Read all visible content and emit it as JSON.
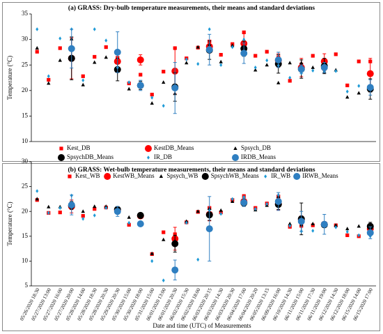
{
  "chart_data": [
    {
      "type": "scatter",
      "title": "(a) GRASS:  Dry-bulb temperature measurements, their means and standard deviations",
      "y_label": "Temperature (°C)",
      "ylim": [
        10,
        35
      ],
      "yticks": [
        10,
        15,
        20,
        25,
        30,
        35
      ],
      "grid": false,
      "legend": "bottom",
      "series": [
        {
          "name": "Kest_DB",
          "marker": "square",
          "color": "#ff0000",
          "values": [
            27.6,
            22.1,
            28.3,
            28.4,
            22.8,
            26.6,
            28.5,
            26.4,
            21.4,
            23.1,
            19.2,
            23.7,
            28.3,
            26.3,
            28.4,
            29.6,
            27,
            29.1,
            31.4,
            26.8,
            27.6,
            26.5,
            21.9,
            25.1,
            26.8,
            24.2,
            27.1,
            21,
            25.7,
            25.7
          ]
        },
        {
          "name": "KestDB_Means",
          "marker": "circle",
          "color": "#ff0000",
          "values": [
            null,
            null,
            null,
            26.3,
            null,
            null,
            null,
            25.7,
            null,
            26,
            null,
            null,
            23.8,
            null,
            null,
            28.6,
            null,
            null,
            29.2,
            null,
            null,
            25.9,
            null,
            24.5,
            null,
            25.7,
            null,
            null,
            null,
            23.3
          ],
          "errors": [
            null,
            null,
            null,
            4,
            null,
            null,
            null,
            1.5,
            null,
            1,
            null,
            null,
            4.5,
            null,
            null,
            1.2,
            null,
            null,
            2,
            null,
            null,
            1.3,
            null,
            1.8,
            null,
            1.5,
            null,
            null,
            null,
            3
          ]
        },
        {
          "name": "Spsych_DB",
          "marker": "triangle",
          "color": "#000000",
          "values": [
            28.3,
            21.4,
            25.9,
            30.1,
            21.1,
            25.5,
            26.5,
            23.8,
            20.3,
            21,
            17.5,
            21.6,
            19.4,
            25.4,
            28.5,
            29,
            25.6,
            28.8,
            28.5,
            24,
            25,
            21.5,
            25.4,
            25.4,
            24.5,
            23.7,
            24,
            18.7,
            19.5,
            19.9
          ]
        },
        {
          "name": "SpsychDB_Means",
          "marker": "circle",
          "color": "#000000",
          "values": [
            null,
            null,
            null,
            26.3,
            null,
            null,
            null,
            24.1,
            null,
            21,
            null,
            null,
            20.7,
            null,
            null,
            27.9,
            null,
            null,
            28.2,
            null,
            null,
            25.2,
            null,
            24.2,
            null,
            24.8,
            null,
            null,
            null,
            20.3
          ],
          "errors": [
            null,
            null,
            null,
            4.2,
            null,
            null,
            null,
            2.2,
            null,
            0.8,
            null,
            null,
            2.8,
            null,
            null,
            1.8,
            null,
            null,
            1.5,
            null,
            null,
            1.8,
            null,
            1.8,
            null,
            1.5,
            null,
            null,
            null,
            2
          ]
        },
        {
          "name": "IR_DB",
          "marker": "diamond",
          "color": "#1f9bd7",
          "values": [
            32,
            22.8,
            30.2,
            32,
            22,
            32,
            29.8,
            24.5,
            21.6,
            21.5,
            18.6,
            17,
            20.1,
            26.1,
            25.2,
            32,
            25,
            28.5,
            30,
            24.5,
            25.9,
            24.9,
            22.5,
            23.4,
            23.9,
            23.8,
            23.8,
            19.8,
            20.9,
            20.7
          ]
        },
        {
          "name": "IRDB_Means",
          "marker": "circle",
          "color": "#2f7fc1",
          "values": [
            null,
            null,
            null,
            28.2,
            null,
            null,
            null,
            27.5,
            null,
            21,
            null,
            null,
            20.5,
            null,
            null,
            28,
            null,
            null,
            27.3,
            null,
            null,
            26,
            null,
            24.2,
            null,
            24.5,
            null,
            null,
            null,
            20.6
          ],
          "errors": [
            null,
            null,
            null,
            3.8,
            null,
            null,
            null,
            4,
            null,
            1,
            null,
            null,
            5,
            null,
            null,
            3,
            null,
            null,
            2,
            null,
            null,
            1.5,
            null,
            0.8,
            null,
            1,
            null,
            null,
            null,
            1.5
          ]
        }
      ]
    },
    {
      "type": "scatter",
      "title": "(b) GRASS:  Wet-bulb temperature measurements, their means and standard deviations",
      "y_label": "Temperature (°C)",
      "x_label": "Date and time (UTC) of Measurements",
      "categories": [
        "05/26/2020 18:30",
        "05/27/2020 13:00",
        "05/27/2020 16:00",
        "05/27/2020 20:00",
        "05/28/2020 14:00",
        "05/28/2020 18:30",
        "05/28/2020 20:30",
        "05/29/2020 20:30",
        "05/30/2020 15:00",
        "05/30/2020 18:00",
        "05/31/2020 15:00",
        "06/01/2020 13:00",
        "06/01/2020 20:30",
        "06/02/2020 15:30",
        "06/02/2020 18:00",
        "06/03/2020 20:15",
        "06/03/2020 14:30",
        "06/03/2020 20:30",
        "06/04/2020 17:00",
        "06/04/2020 20:20",
        "06/05/2020 13:15",
        "06/09/2020 16:00",
        "06/10/2020 14:30",
        "06/11/2020 15:00",
        "06/11/2020 17:30",
        "06/11/2020 19:00",
        "06/12/2020 14:30",
        "06/12/2020 18:00",
        "06/15/2020 14:00",
        "06/15/2020 17:00"
      ],
      "ylim": [
        5,
        30
      ],
      "yticks": [
        5,
        10,
        15,
        20,
        25,
        30
      ],
      "grid": false,
      "legend": "top",
      "series": [
        {
          "name": "Kest_WB",
          "marker": "square",
          "color": "#ff0000",
          "values": [
            22.3,
            19.7,
            19.8,
            21.1,
            19.1,
            20.5,
            20.8,
            20,
            17.3,
            17.4,
            11.4,
            15.8,
            15.4,
            17.8,
            19.9,
            20.7,
            19.8,
            22.3,
            23.1,
            20.7,
            21.6,
            23,
            16.9,
            17.1,
            17.2,
            17.2,
            17.2,
            15.2,
            15,
            16.8
          ]
        },
        {
          "name": "KestWB_Means",
          "marker": "circle",
          "color": "#ff0000",
          "values": [
            null,
            null,
            null,
            21,
            null,
            null,
            null,
            20.3,
            null,
            19.1,
            null,
            null,
            14.5,
            null,
            null,
            19.4,
            null,
            null,
            22,
            null,
            null,
            21.5,
            null,
            18.3,
            null,
            17.4,
            null,
            null,
            null,
            16.5
          ],
          "errors": [
            null,
            null,
            null,
            1.3,
            null,
            null,
            null,
            0.5,
            null,
            0.3,
            null,
            null,
            2.3,
            null,
            null,
            1.3,
            null,
            null,
            0.8,
            null,
            null,
            1.2,
            null,
            0.8,
            null,
            0.5,
            null,
            null,
            null,
            1
          ]
        },
        {
          "name": "Spsych_WB",
          "marker": "triangle",
          "color": "#000000",
          "values": [
            22.5,
            20.9,
            20.9,
            21.8,
            20,
            21,
            21,
            20.3,
            18.8,
            18.8,
            11.5,
            14.3,
            14,
            18,
            20,
            20.6,
            20.2,
            22,
            22.5,
            20.3,
            21.2,
            23,
            17.5,
            17.3,
            17.5,
            17.2,
            17.2,
            16.5,
            17,
            17.1
          ]
        },
        {
          "name": "SpsychWB_Means",
          "marker": "circle",
          "color": "#000000",
          "values": [
            null,
            null,
            null,
            21.2,
            null,
            null,
            null,
            20.4,
            null,
            19.2,
            null,
            null,
            13.5,
            null,
            null,
            19.3,
            null,
            null,
            21.7,
            null,
            null,
            21.4,
            null,
            18.5,
            null,
            17.3,
            null,
            null,
            null,
            17
          ],
          "errors": [
            null,
            null,
            null,
            0.8,
            null,
            null,
            null,
            0.4,
            null,
            0.4,
            null,
            null,
            1.7,
            null,
            null,
            1.1,
            null,
            null,
            0.7,
            null,
            null,
            1,
            null,
            3.2,
            null,
            0.5,
            null,
            null,
            null,
            0.8
          ]
        },
        {
          "name": "IR_WB",
          "marker": "diamond",
          "color": "#1f9bd7",
          "values": [
            24.1,
            19.7,
            20.7,
            23.2,
            18.5,
            19.2,
            20.7,
            19.8,
            17.7,
            17.2,
            10,
            6.1,
            8,
            17.7,
            10.3,
            20.2,
            19.5,
            22.5,
            22.9,
            20.5,
            21.5,
            23.3,
            17.1,
            16,
            16.1,
            17.2,
            16.8,
            15.9,
            15.2,
            15
          ]
        },
        {
          "name": "IRWB_Means",
          "marker": "circle",
          "color": "#2f7fc1",
          "values": [
            null,
            null,
            null,
            21.3,
            null,
            null,
            null,
            20,
            null,
            17.5,
            null,
            null,
            8.2,
            null,
            null,
            16.5,
            null,
            null,
            21.8,
            null,
            null,
            22,
            null,
            18,
            null,
            17.4,
            null,
            null,
            null,
            15.7
          ],
          "errors": [
            null,
            null,
            null,
            2,
            null,
            null,
            null,
            1,
            null,
            0.5,
            null,
            null,
            2,
            null,
            null,
            6.5,
            null,
            null,
            0.8,
            null,
            null,
            1.8,
            null,
            2,
            null,
            2,
            null,
            null,
            null,
            1.2
          ]
        }
      ]
    }
  ]
}
